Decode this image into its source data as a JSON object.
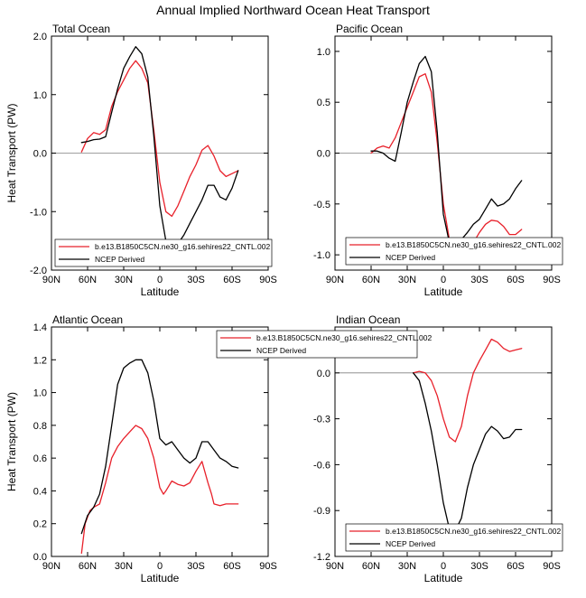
{
  "title": "Annual Implied Northward Ocean Heat Transport",
  "colors": {
    "model": "#e8202a",
    "ncep": "#000000",
    "zero_line": "#808080"
  },
  "x_ticks": [
    "90N",
    "60N",
    "30N",
    "0",
    "30S",
    "60S",
    "90S"
  ],
  "legend": [
    "b.e13.B1850C5CN.ne30_g16.sehires22_CNTL.002",
    "NCEP Derived"
  ],
  "chart_data": [
    {
      "type": "line",
      "title": "Total Ocean",
      "xlabel": "Latitude",
      "ylabel": "Heat Transport (PW)",
      "xlim": [
        90,
        -90
      ],
      "ylim": [
        -2.0,
        2.0
      ],
      "yticks": [
        "2.0",
        "1.0",
        "0.0",
        "-1.0",
        "-2.0"
      ],
      "ytick_values": [
        2.0,
        1.0,
        0.0,
        -1.0,
        -2.0
      ],
      "legend_position": "bottom-left",
      "series": [
        {
          "name": "b.e13.B1850C5CN.ne30_g16.sehires22_CNTL.002",
          "color": "#e8202a",
          "x": [
            65,
            60,
            55,
            50,
            45,
            40,
            35,
            30,
            25,
            20,
            15,
            10,
            5,
            0,
            -5,
            -10,
            -15,
            -20,
            -25,
            -30,
            -35,
            -40,
            -45,
            -50,
            -55,
            -60,
            -65
          ],
          "y": [
            0.02,
            0.25,
            0.35,
            0.32,
            0.4,
            0.8,
            1.05,
            1.25,
            1.45,
            1.58,
            1.45,
            1.2,
            0.4,
            -0.5,
            -1.0,
            -1.08,
            -0.9,
            -0.65,
            -0.4,
            -0.2,
            0.05,
            0.13,
            -0.05,
            -0.3,
            -0.4,
            -0.35,
            -0.3
          ]
        },
        {
          "name": "NCEP Derived",
          "color": "#000000",
          "x": [
            65,
            60,
            55,
            50,
            45,
            40,
            35,
            30,
            25,
            20,
            15,
            10,
            5,
            0,
            -5,
            -10,
            -15,
            -20,
            -25,
            -30,
            -35,
            -40,
            -45,
            -50,
            -55,
            -60,
            -65
          ],
          "y": [
            0.18,
            0.2,
            0.23,
            0.24,
            0.28,
            0.7,
            1.1,
            1.45,
            1.65,
            1.82,
            1.7,
            1.3,
            0.3,
            -0.9,
            -1.5,
            -1.65,
            -1.55,
            -1.4,
            -1.2,
            -1.0,
            -0.8,
            -0.55,
            -0.55,
            -0.75,
            -0.8,
            -0.6,
            -0.3
          ]
        }
      ]
    },
    {
      "type": "line",
      "title": "Pacific Ocean",
      "xlabel": "Latitude",
      "ylabel": "",
      "xlim": [
        90,
        -90
      ],
      "ylim": [
        -1.15,
        1.15
      ],
      "yticks": [
        "1.0",
        "0.5",
        "0.0",
        "-0.5",
        "-1.0"
      ],
      "ytick_values": [
        1.0,
        0.5,
        0.0,
        -0.5,
        -1.0
      ],
      "legend_position": "bottom-right",
      "series": [
        {
          "name": "b.e13.B1850C5CN.ne30_g16.sehires22_CNTL.002",
          "color": "#e8202a",
          "x": [
            60,
            55,
            50,
            45,
            40,
            35,
            30,
            25,
            20,
            15,
            10,
            5,
            0,
            -5,
            -10,
            -15,
            -20,
            -25,
            -30,
            -35,
            -40,
            -45,
            -50,
            -55,
            -60,
            -65
          ],
          "y": [
            0.0,
            0.05,
            0.07,
            0.05,
            0.15,
            0.3,
            0.45,
            0.6,
            0.75,
            0.78,
            0.6,
            0.1,
            -0.5,
            -0.85,
            -1.0,
            -1.05,
            -0.98,
            -0.88,
            -0.78,
            -0.7,
            -0.66,
            -0.67,
            -0.72,
            -0.8,
            -0.8,
            -0.75
          ]
        },
        {
          "name": "NCEP Derived",
          "color": "#000000",
          "x": [
            60,
            55,
            50,
            45,
            40,
            35,
            30,
            25,
            20,
            15,
            10,
            5,
            0,
            -5,
            -10,
            -15,
            -20,
            -25,
            -30,
            -35,
            -40,
            -45,
            -50,
            -55,
            -60,
            -65
          ],
          "y": [
            0.02,
            0.02,
            0.0,
            -0.05,
            -0.08,
            0.2,
            0.5,
            0.7,
            0.88,
            0.95,
            0.8,
            0.2,
            -0.6,
            -0.88,
            -0.93,
            -0.85,
            -0.78,
            -0.7,
            -0.65,
            -0.55,
            -0.45,
            -0.52,
            -0.5,
            -0.45,
            -0.35,
            -0.27
          ]
        }
      ]
    },
    {
      "type": "line",
      "title": "Atlantic Ocean",
      "xlabel": "Latitude",
      "ylabel": "Heat Transport (PW)",
      "xlim": [
        90,
        -90
      ],
      "ylim": [
        0.0,
        1.4
      ],
      "yticks": [
        "1.4",
        "1.2",
        "1.0",
        "0.8",
        "0.6",
        "0.4",
        "0.2",
        "0.0"
      ],
      "ytick_values": [
        1.4,
        1.2,
        1.0,
        0.8,
        0.6,
        0.4,
        0.2,
        0.0
      ],
      "legend_position": "top",
      "series": [
        {
          "name": "b.e13.B1850C5CN.ne30_g16.sehires22_CNTL.002",
          "color": "#e8202a",
          "x": [
            65,
            62,
            58,
            55,
            50,
            45,
            40,
            35,
            30,
            25,
            20,
            15,
            10,
            5,
            0,
            -3,
            -5,
            -10,
            -15,
            -20,
            -25,
            -30,
            -35,
            -40,
            -43,
            -45,
            -50,
            -55,
            -60,
            -65
          ],
          "y": [
            0.02,
            0.2,
            0.28,
            0.3,
            0.32,
            0.45,
            0.6,
            0.67,
            0.72,
            0.76,
            0.8,
            0.78,
            0.72,
            0.6,
            0.42,
            0.38,
            0.4,
            0.46,
            0.44,
            0.43,
            0.45,
            0.52,
            0.58,
            0.45,
            0.38,
            0.32,
            0.31,
            0.32,
            0.32,
            0.32
          ]
        },
        {
          "name": "NCEP Derived",
          "color": "#000000",
          "x": [
            65,
            60,
            55,
            50,
            45,
            40,
            35,
            30,
            25,
            20,
            15,
            10,
            5,
            0,
            -5,
            -10,
            -15,
            -20,
            -25,
            -30,
            -35,
            -40,
            -45,
            -50,
            -55,
            -60,
            -65
          ],
          "y": [
            0.14,
            0.25,
            0.3,
            0.38,
            0.55,
            0.8,
            1.05,
            1.15,
            1.18,
            1.2,
            1.2,
            1.12,
            0.95,
            0.72,
            0.68,
            0.7,
            0.65,
            0.6,
            0.57,
            0.6,
            0.7,
            0.7,
            0.65,
            0.6,
            0.58,
            0.55,
            0.54
          ]
        }
      ]
    },
    {
      "type": "line",
      "title": "Indian Ocean",
      "xlabel": "Latitude",
      "ylabel": "",
      "xlim": [
        90,
        -90
      ],
      "ylim": [
        -1.2,
        0.3
      ],
      "yticks": [
        "0.0",
        "-0.3",
        "-0.6",
        "-0.9",
        "-1.2"
      ],
      "ytick_values": [
        0.0,
        -0.3,
        -0.6,
        -0.9,
        -1.2
      ],
      "legend_position": "bottom-right",
      "series": [
        {
          "name": "b.e13.B1850C5CN.ne30_g16.sehires22_CNTL.002",
          "color": "#e8202a",
          "x": [
            25,
            20,
            15,
            10,
            5,
            0,
            -5,
            -10,
            -15,
            -20,
            -25,
            -30,
            -35,
            -40,
            -45,
            -50,
            -55,
            -60,
            -65
          ],
          "y": [
            0.0,
            0.01,
            0.0,
            -0.05,
            -0.15,
            -0.3,
            -0.42,
            -0.45,
            -0.35,
            -0.15,
            0.0,
            0.08,
            0.15,
            0.22,
            0.2,
            0.16,
            0.14,
            0.15,
            0.16
          ]
        },
        {
          "name": "NCEP Derived",
          "color": "#000000",
          "x": [
            25,
            20,
            15,
            10,
            5,
            0,
            -5,
            -10,
            -15,
            -20,
            -25,
            -30,
            -35,
            -40,
            -45,
            -50,
            -55,
            -60,
            -65
          ],
          "y": [
            0.0,
            -0.05,
            -0.2,
            -0.38,
            -0.6,
            -0.85,
            -1.02,
            -1.03,
            -0.95,
            -0.75,
            -0.6,
            -0.5,
            -0.4,
            -0.35,
            -0.38,
            -0.43,
            -0.42,
            -0.37,
            -0.37
          ]
        }
      ]
    }
  ]
}
